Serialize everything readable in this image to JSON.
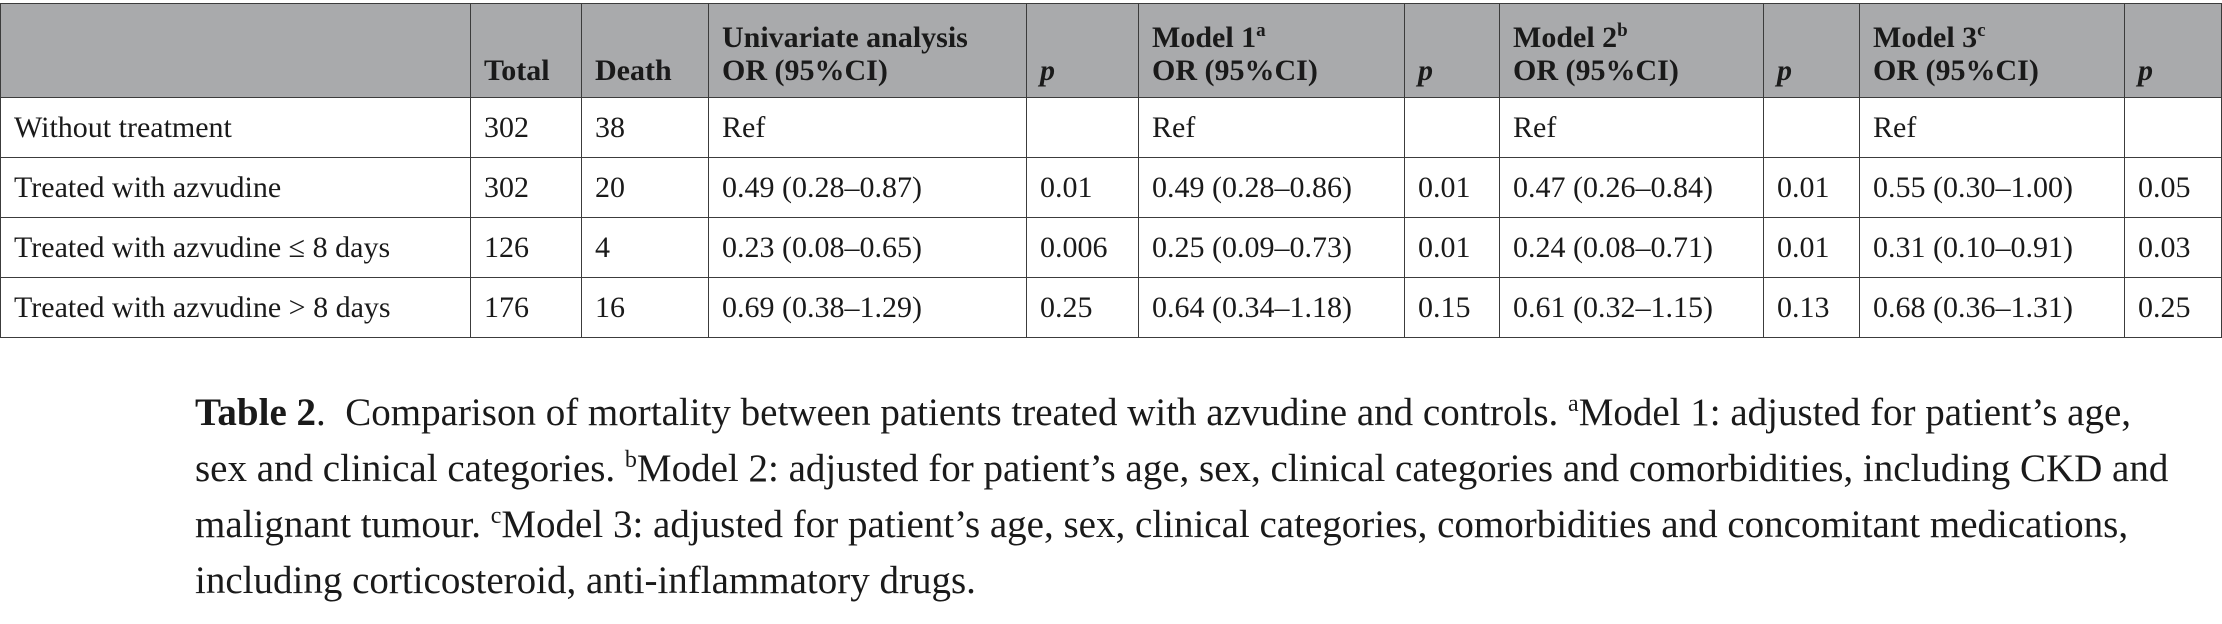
{
  "table": {
    "headers": [
      {
        "text": "",
        "sup": ""
      },
      {
        "text": "Total",
        "sup": ""
      },
      {
        "text": "Death",
        "sup": ""
      },
      {
        "line1": "Univariate analysis",
        "sup": "",
        "line2": "OR (95%CI)"
      },
      {
        "text": "p",
        "sup": ""
      },
      {
        "line1": "Model 1",
        "sup": "a",
        "line2": "OR (95%CI)"
      },
      {
        "text": "p",
        "sup": ""
      },
      {
        "line1": "Model 2",
        "sup": "b",
        "line2": "OR (95%CI)"
      },
      {
        "text": "p",
        "sup": ""
      },
      {
        "line1": "Model 3",
        "sup": "c",
        "line2": "OR (95%CI)"
      },
      {
        "text": "p",
        "sup": ""
      }
    ],
    "rows": [
      [
        "Without treatment",
        "302",
        "38",
        "Ref",
        "",
        "Ref",
        "",
        "Ref",
        "",
        "Ref",
        ""
      ],
      [
        "Treated with azvudine",
        "302",
        "20",
        "0.49 (0.28–0.87)",
        "0.01",
        "0.49 (0.28–0.86)",
        "0.01",
        "0.47 (0.26–0.84)",
        "0.01",
        "0.55 (0.30–1.00)",
        "0.05"
      ],
      [
        "Treated with azvudine ≤ 8 days",
        "126",
        "4",
        "0.23 (0.08–0.65)",
        "0.006",
        "0.25 (0.09–0.73)",
        "0.01",
        "0.24 (0.08–0.71)",
        "0.01",
        "0.31 (0.10–0.91)",
        "0.03"
      ],
      [
        "Treated with azvudine > 8 days",
        "176",
        "16",
        "0.69 (0.38–1.29)",
        "0.25",
        "0.64 (0.34–1.18)",
        "0.15",
        "0.61 (0.32–1.15)",
        "0.13",
        "0.68 (0.36–1.31)",
        "0.25"
      ]
    ]
  },
  "caption": {
    "label": "Table 2",
    "label_suffix": ".",
    "title": "Comparison of mortality between patients treated with azvudine and controls.",
    "notes": [
      {
        "sup": "a",
        "text": "Model 1: adjusted for patient’s age, sex and clinical categories."
      },
      {
        "sup": "b",
        "text": "Model 2: adjusted for patient’s age, sex, clinical categories and comorbidities, including CKD and malignant tumour."
      },
      {
        "sup": "c",
        "text": "Model 3: adjusted for patient’s age, sex, clinical categories, comorbidities and concomitant medications, including corticosteroid, anti-inflammatory drugs."
      }
    ]
  },
  "colors": {
    "header_background": "#a9aaac",
    "border": "#3c3c3c",
    "text": "#1a1a1a"
  }
}
